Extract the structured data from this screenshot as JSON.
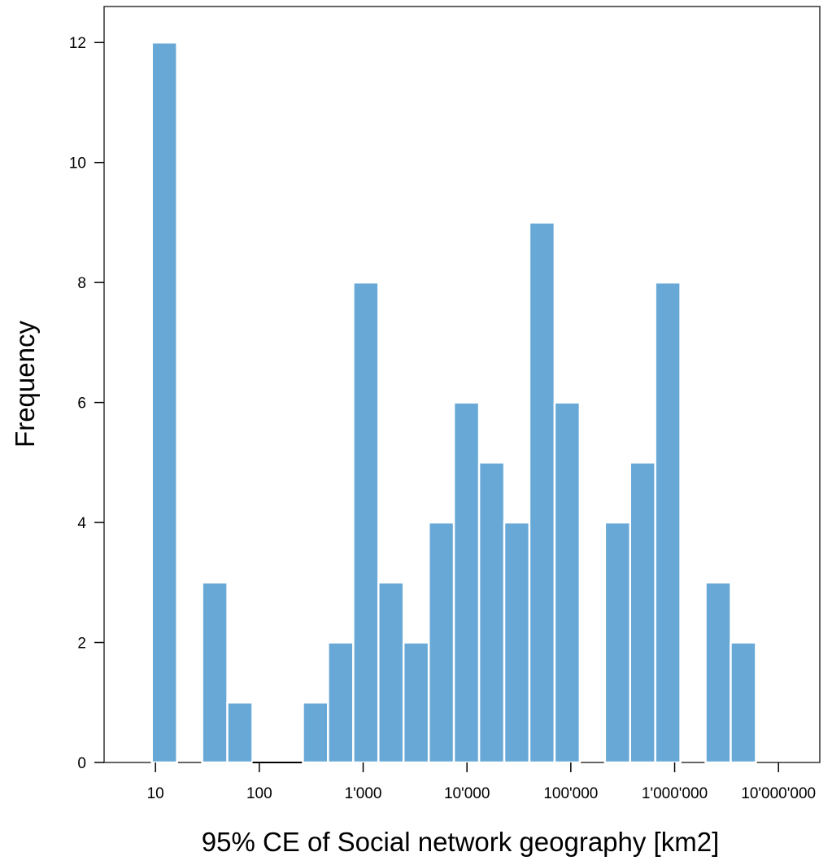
{
  "chart_data": {
    "type": "bar",
    "subtype": "histogram",
    "x_scale": "log10",
    "xlabel": "95% CE of Social network geography [km2]",
    "ylabel": "Frequency",
    "ylim": [
      0,
      12.6
    ],
    "xlim": [
      3.2,
      25000000
    ],
    "x_ticks": [
      10,
      100,
      1000,
      10000,
      100000,
      1000000,
      10000000
    ],
    "x_tick_labels": [
      "10",
      "100",
      "1'000",
      "10'000",
      "100'000",
      "1'000'000",
      "10'000'000"
    ],
    "y_ticks": [
      0,
      2,
      4,
      6,
      8,
      10,
      12
    ],
    "y_tick_labels": [
      "0",
      "2",
      "4",
      "6",
      "8",
      "10",
      "12"
    ],
    "bin_width_log10": 0.2424,
    "bins": [
      {
        "log10_start": 0.965,
        "count": 12
      },
      {
        "log10_start": 1.45,
        "count": 3
      },
      {
        "log10_start": 1.692,
        "count": 1
      },
      {
        "log10_start": 1.935,
        "count": 0
      },
      {
        "log10_start": 2.177,
        "count": 0
      },
      {
        "log10_start": 2.42,
        "count": 1
      },
      {
        "log10_start": 2.662,
        "count": 2
      },
      {
        "log10_start": 2.905,
        "count": 8
      },
      {
        "log10_start": 3.147,
        "count": 3
      },
      {
        "log10_start": 3.389,
        "count": 2
      },
      {
        "log10_start": 3.632,
        "count": 4
      },
      {
        "log10_start": 3.874,
        "count": 6
      },
      {
        "log10_start": 4.117,
        "count": 5
      },
      {
        "log10_start": 4.359,
        "count": 4
      },
      {
        "log10_start": 4.601,
        "count": 9
      },
      {
        "log10_start": 4.844,
        "count": 6
      },
      {
        "log10_start": 5.329,
        "count": 4
      },
      {
        "log10_start": 5.571,
        "count": 5
      },
      {
        "log10_start": 5.813,
        "count": 8
      },
      {
        "log10_start": 6.298,
        "count": 3
      },
      {
        "log10_start": 6.54,
        "count": 2
      }
    ],
    "bar_color": "#67a8d6",
    "bar_edge_color": "#ffffff",
    "frame_color": "#333333",
    "grid": false,
    "legend": "none"
  }
}
